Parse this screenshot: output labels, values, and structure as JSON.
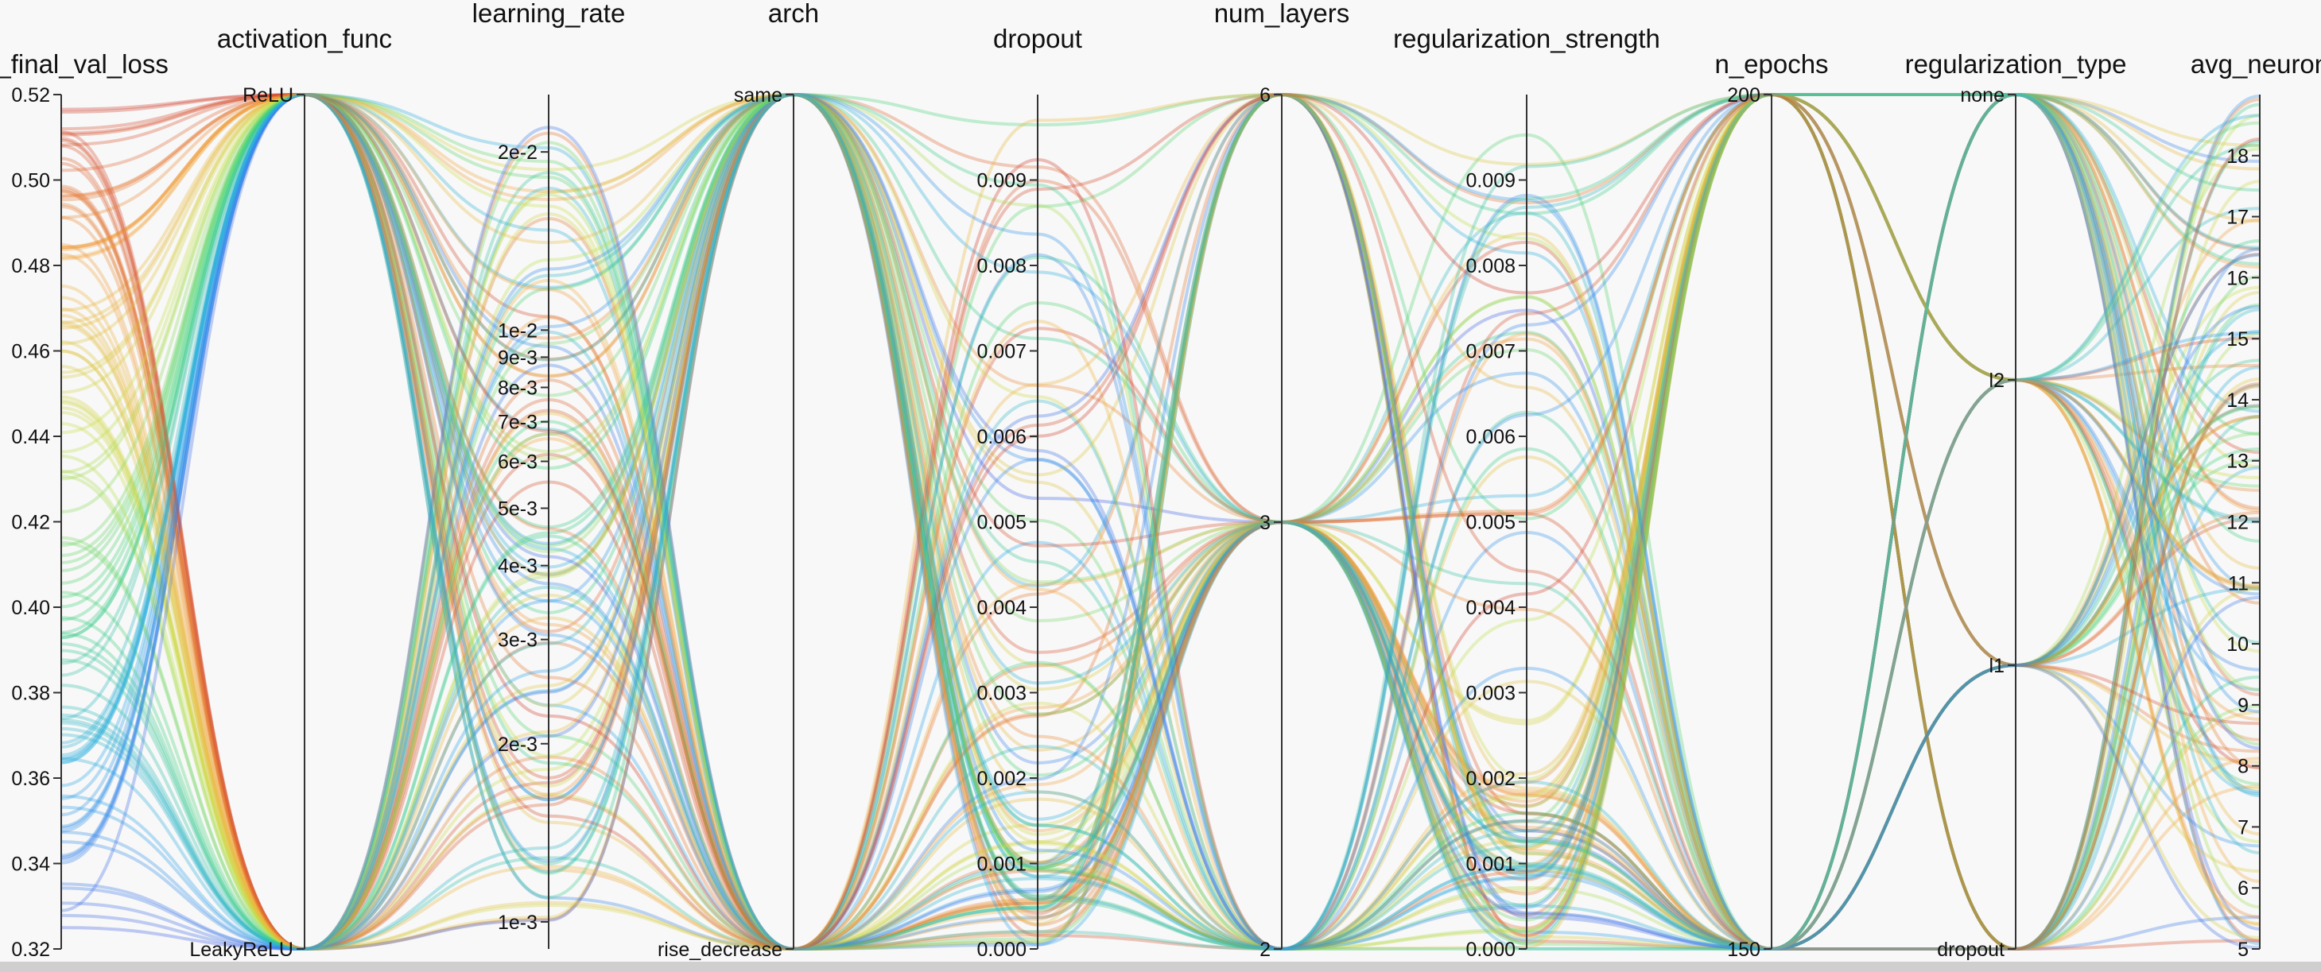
{
  "chart_data": {
    "type": "parallel_coordinates",
    "axes": [
      {
        "key": "avg_final_val_loss",
        "label": "avg_final_val_loss",
        "kind": "numeric",
        "range": [
          0.32,
          0.52
        ],
        "ticks": [
          "0.52",
          "0.50",
          "0.48",
          "0.46",
          "0.44",
          "0.42",
          "0.40",
          "0.38",
          "0.36",
          "0.34",
          "0.32"
        ]
      },
      {
        "key": "activation_func",
        "label": "activation_func",
        "kind": "categorical",
        "categories": [
          "ReLU",
          "LeakyReLU"
        ]
      },
      {
        "key": "learning_rate",
        "label": "learning_rate",
        "kind": "log",
        "range": [
          0.0009,
          0.025
        ],
        "ticks": [
          {
            "v": 0.02,
            "t": "2e-2"
          },
          {
            "v": 0.01,
            "t": "1e-2"
          },
          {
            "v": 0.009,
            "t": "9e-3"
          },
          {
            "v": 0.008,
            "t": "8e-3"
          },
          {
            "v": 0.007,
            "t": "7e-3"
          },
          {
            "v": 0.006,
            "t": "6e-3"
          },
          {
            "v": 0.005,
            "t": "5e-3"
          },
          {
            "v": 0.004,
            "t": "4e-3"
          },
          {
            "v": 0.003,
            "t": "3e-3"
          },
          {
            "v": 0.002,
            "t": "2e-3"
          },
          {
            "v": 0.001,
            "t": "1e-3"
          }
        ]
      },
      {
        "key": "arch",
        "label": "arch",
        "kind": "categorical",
        "categories": [
          "same",
          "rise_decrease"
        ],
        "category_labels": [
          "same",
          "rise_decrease"
        ]
      },
      {
        "key": "dropout",
        "label": "dropout",
        "kind": "numeric",
        "range": [
          0.0,
          0.01
        ],
        "ticks": [
          "0.009",
          "0.008",
          "0.007",
          "0.006",
          "0.005",
          "0.004",
          "0.003",
          "0.002",
          "0.001",
          "0.000"
        ]
      },
      {
        "key": "num_layers",
        "label": "num_layers",
        "kind": "categorical",
        "categories": [
          "6",
          "3",
          "2"
        ]
      },
      {
        "key": "regularization_strength",
        "label": "regularization_strength",
        "kind": "numeric",
        "range": [
          0.0,
          0.01
        ],
        "ticks": [
          "0.009",
          "0.008",
          "0.007",
          "0.006",
          "0.005",
          "0.004",
          "0.003",
          "0.002",
          "0.001",
          "0.000"
        ]
      },
      {
        "key": "n_epochs",
        "label": "n_epochs",
        "kind": "categorical",
        "categories": [
          "200",
          "150"
        ]
      },
      {
        "key": "regularization_type",
        "label": "regularization_type",
        "kind": "categorical",
        "categories": [
          "none",
          "l2",
          "l1",
          "dropout"
        ]
      },
      {
        "key": "avg_neurons",
        "label": "avg_neuron",
        "kind": "numeric",
        "range": [
          5,
          19
        ],
        "ticks": [
          "18",
          "17",
          "16",
          "15",
          "14",
          "13",
          "12",
          "11",
          "10",
          "9",
          "8",
          "7",
          "6",
          "5"
        ]
      }
    ],
    "color_by": "avg_final_val_loss",
    "colormap": "rainbow (blue = low loss, red = high loss)",
    "series_count": 120
  }
}
